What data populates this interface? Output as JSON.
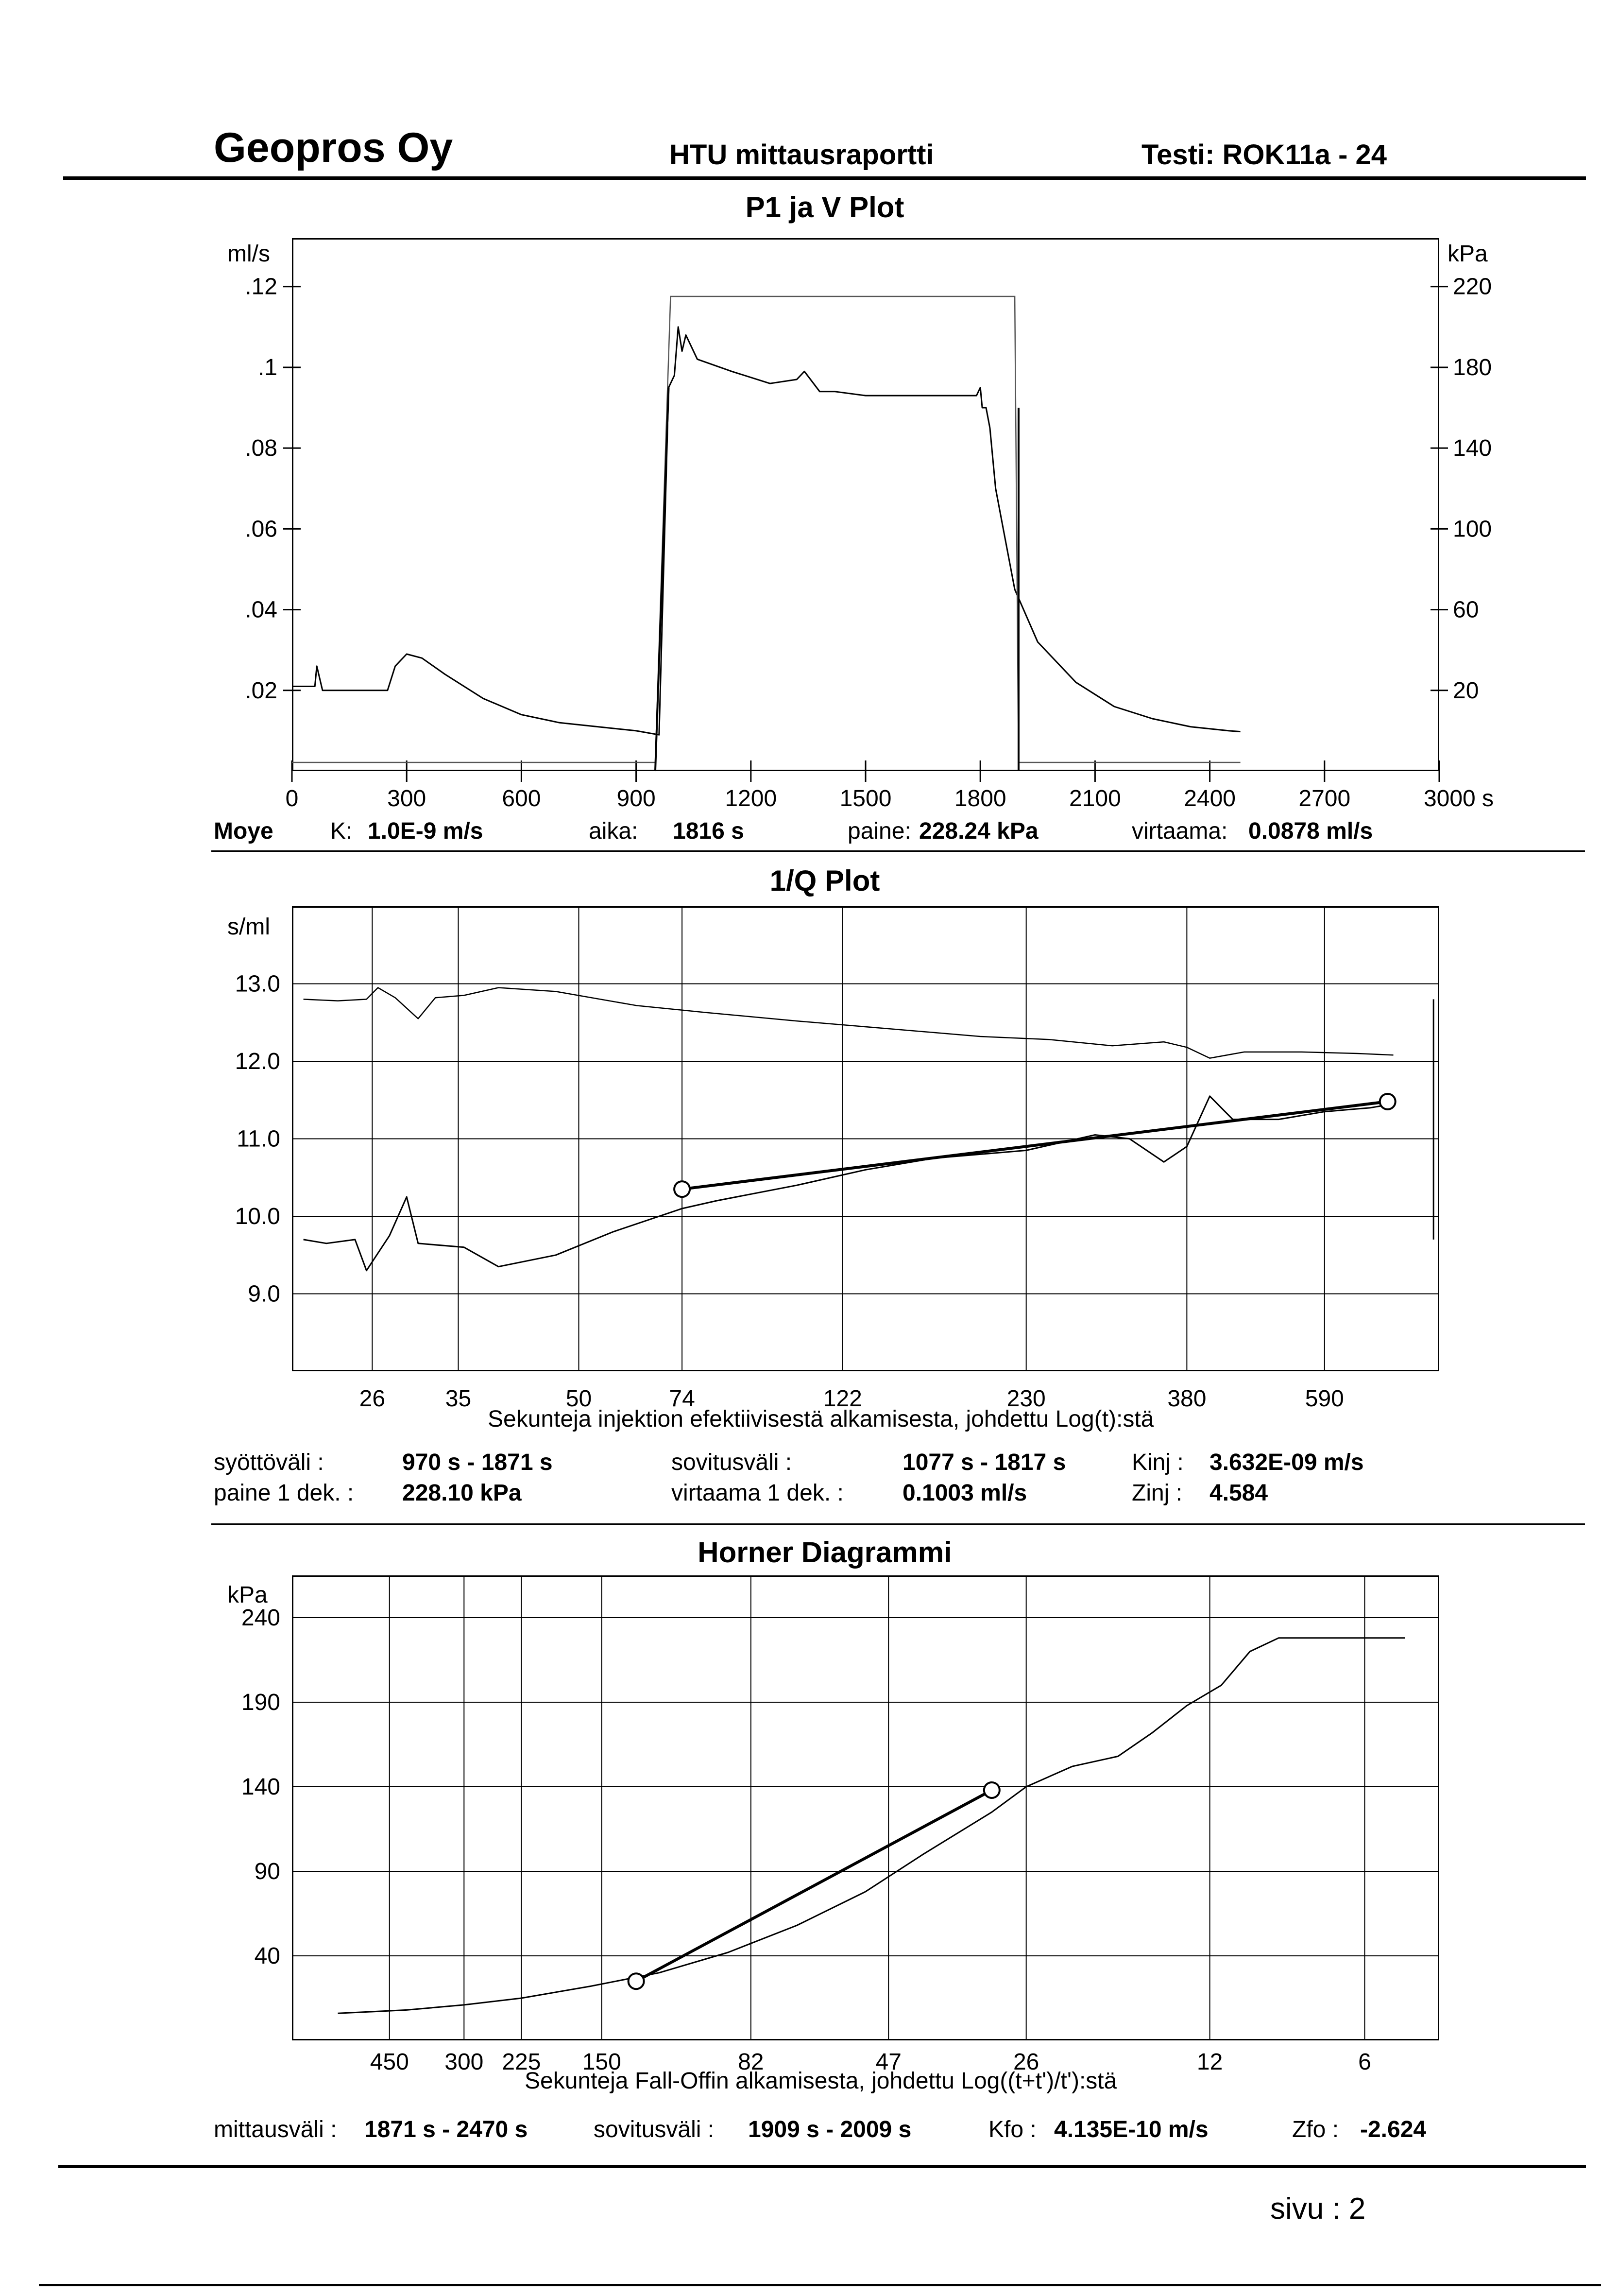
{
  "header": {
    "company": "Geopros Oy",
    "report": "HTU mittausraportti",
    "test": "Testi: ROK11a - 24"
  },
  "page_label": "sivu :  2",
  "plot1_info": {
    "name": "Moye",
    "k_label": "K:",
    "k_value": "1.0E-9 m/s",
    "aika_label": "aika:",
    "aika_value": "1816 s",
    "paine_label": "paine:",
    "paine_value": "228.24 kPa",
    "virtaama_label": "virtaama:",
    "virtaama_value": "0.0878 ml/s"
  },
  "plot2_info": {
    "syotto_label": "syöttöväli :",
    "syotto_value": "970 s -  1871 s",
    "sovitus_label": "sovitusväli :",
    "sovitus_value": "1077 s -   1817 s",
    "kinj_label": "Kinj :",
    "kinj_value": "3.632E-09 m/s",
    "paine1_label": "paine 1 dek. :",
    "paine1_value": "228.10 kPa",
    "virtaama1_label": "virtaama 1 dek. :",
    "virtaama1_value": "0.1003 ml/s",
    "zinj_label": "Zinj :",
    "zinj_value": "4.584"
  },
  "plot3_info": {
    "mittaus_label": "mittausväli :",
    "mittaus_value": "1871 s -  2470 s",
    "sovitus_label": "sovitusväli :",
    "sovitus_value": "1909 s -  2009 s",
    "kfo_label": "Kfo :",
    "kfo_value": "4.135E-10 m/s",
    "zfo_label": "Zfo :",
    "zfo_value": "-2.624"
  },
  "chart_data": [
    {
      "type": "line",
      "title": "P1 ja V Plot",
      "ylabel_left": "ml/s",
      "ylabel_right": "kPa",
      "xlim": [
        0,
        3000
      ],
      "x_ticks": [
        {
          "v": 0,
          "label": "0"
        },
        {
          "v": 300,
          "label": "300"
        },
        {
          "v": 600,
          "label": "600"
        },
        {
          "v": 900,
          "label": "900"
        },
        {
          "v": 1200,
          "label": "1200"
        },
        {
          "v": 1500,
          "label": "1500"
        },
        {
          "v": 1800,
          "label": "1800"
        },
        {
          "v": 2100,
          "label": "2100"
        },
        {
          "v": 2400,
          "label": "2400"
        },
        {
          "v": 2700,
          "label": "2700"
        },
        {
          "v": 3000,
          "label": "3000 s"
        }
      ],
      "y_left_ticks": [
        ".12",
        ".1",
        ".08",
        ".06",
        ".04",
        ".02"
      ],
      "y_right_ticks": [
        "220",
        "180",
        "140",
        "100",
        "60",
        "20"
      ],
      "ylim_left": [
        0,
        0.132
      ],
      "series": [
        {
          "axis": "left",
          "points": [
            [
              0,
              0.021
            ],
            [
              60,
              0.021
            ],
            [
              65,
              0.026
            ],
            [
              80,
              0.02
            ],
            [
              250,
              0.02
            ],
            [
              270,
              0.026
            ],
            [
              300,
              0.029
            ],
            [
              340,
              0.028
            ],
            [
              400,
              0.024
            ],
            [
              500,
              0.018
            ],
            [
              600,
              0.014
            ],
            [
              700,
              0.012
            ],
            [
              800,
              0.011
            ],
            [
              900,
              0.01
            ],
            [
              960,
              0.009
            ],
            [
              985,
              0.095
            ],
            [
              1000,
              0.098
            ],
            [
              1010,
              0.11
            ],
            [
              1020,
              0.104
            ],
            [
              1030,
              0.108
            ],
            [
              1060,
              0.102
            ],
            [
              1150,
              0.099
            ],
            [
              1250,
              0.096
            ],
            [
              1320,
              0.097
            ],
            [
              1340,
              0.099
            ],
            [
              1380,
              0.094
            ],
            [
              1420,
              0.094
            ],
            [
              1500,
              0.093
            ],
            [
              1600,
              0.093
            ],
            [
              1700,
              0.093
            ],
            [
              1790,
              0.093
            ],
            [
              1800,
              0.095
            ],
            [
              1805,
              0.09
            ],
            [
              1815,
              0.09
            ],
            [
              1825,
              0.085
            ],
            [
              1840,
              0.07
            ],
            [
              1860,
              0.06
            ],
            [
              1890,
              0.045
            ],
            [
              1950,
              0.032
            ],
            [
              2050,
              0.022
            ],
            [
              2150,
              0.016
            ],
            [
              2250,
              0.013
            ],
            [
              2350,
              0.011
            ],
            [
              2450,
              0.01
            ],
            [
              2480,
              0.0098
            ]
          ]
        },
        {
          "axis": "right_box",
          "points": [
            [
              0,
              0
            ],
            [
              950,
              0
            ],
            [
              990,
              1
            ],
            [
              1890,
              1
            ],
            [
              1900,
              0
            ],
            [
              2480,
              0
            ]
          ],
          "level_right_kPa": 228.24
        }
      ]
    },
    {
      "type": "line",
      "title": "1/Q Plot",
      "ylabel": "s/ml",
      "xlabel": "Sekunteja injektion efektiivisestä alkamisesta, johdettu Log(t):stä",
      "x_ticks": [
        "26",
        "35",
        "50",
        "74",
        "122",
        "230",
        "380",
        "590"
      ],
      "y_ticks": [
        "13.0",
        "12.0",
        "11.0",
        "10.0",
        "9.0"
      ],
      "ylim": [
        8.0,
        14.0
      ],
      "xlim": [
        0,
        1000
      ],
      "series": [
        {
          "name": "upper",
          "points": [
            [
              10,
              12.8
            ],
            [
              40,
              12.78
            ],
            [
              65,
              12.8
            ],
            [
              75,
              12.95
            ],
            [
              90,
              12.82
            ],
            [
              110,
              12.55
            ],
            [
              125,
              12.82
            ],
            [
              150,
              12.85
            ],
            [
              180,
              12.95
            ],
            [
              230,
              12.9
            ],
            [
              300,
              12.72
            ],
            [
              360,
              12.63
            ],
            [
              440,
              12.52
            ],
            [
              520,
              12.42
            ],
            [
              600,
              12.32
            ],
            [
              660,
              12.28
            ],
            [
              715,
              12.2
            ],
            [
              760,
              12.25
            ],
            [
              780,
              12.18
            ],
            [
              800,
              12.04
            ],
            [
              830,
              12.12
            ],
            [
              880,
              12.12
            ],
            [
              930,
              12.1
            ],
            [
              960,
              12.08
            ]
          ]
        },
        {
          "name": "lower",
          "points": [
            [
              10,
              9.7
            ],
            [
              30,
              9.65
            ],
            [
              55,
              9.7
            ],
            [
              65,
              9.3
            ],
            [
              85,
              9.75
            ],
            [
              100,
              10.25
            ],
            [
              110,
              9.65
            ],
            [
              150,
              9.6
            ],
            [
              180,
              9.35
            ],
            [
              230,
              9.5
            ],
            [
              280,
              9.8
            ],
            [
              340,
              10.1
            ],
            [
              370,
              10.2
            ],
            [
              440,
              10.4
            ],
            [
              500,
              10.6
            ],
            [
              560,
              10.75
            ],
            [
              640,
              10.85
            ],
            [
              700,
              11.05
            ],
            [
              730,
              11.0
            ],
            [
              760,
              10.7
            ],
            [
              780,
              10.9
            ],
            [
              800,
              11.55
            ],
            [
              820,
              11.25
            ],
            [
              860,
              11.25
            ],
            [
              900,
              11.35
            ],
            [
              940,
              11.4
            ],
            [
              960,
              11.45
            ]
          ]
        },
        {
          "name": "fit",
          "points": [
            [
              340,
              10.35
            ],
            [
              955,
              11.48
            ]
          ]
        }
      ]
    },
    {
      "type": "line",
      "title": "Horner Diagrammi",
      "ylabel": "kPa",
      "xlabel": "Sekunteja Fall-Offin alkamisesta, johdettu Log((t+t')/t'):stä",
      "x_ticks": [
        "450",
        "300",
        "225",
        "150",
        "82",
        "47",
        "26",
        "12",
        "6"
      ],
      "y_ticks": [
        "240",
        "190",
        "140",
        "90",
        "40"
      ],
      "ylim": [
        -10,
        265
      ],
      "xlim": [
        0,
        1000
      ],
      "series": [
        {
          "name": "data",
          "points": [
            [
              40,
              6
            ],
            [
              100,
              8
            ],
            [
              150,
              11
            ],
            [
              200,
              15
            ],
            [
              260,
              22
            ],
            [
              320,
              30
            ],
            [
              380,
              42
            ],
            [
              440,
              58
            ],
            [
              500,
              78
            ],
            [
              550,
              100
            ],
            [
              610,
              125
            ],
            [
              640,
              140
            ],
            [
              680,
              152
            ],
            [
              720,
              158
            ],
            [
              750,
              172
            ],
            [
              780,
              188
            ],
            [
              810,
              200
            ],
            [
              835,
              220
            ],
            [
              860,
              228
            ],
            [
              900,
              228
            ],
            [
              970,
              228
            ]
          ]
        },
        {
          "name": "fit",
          "points": [
            [
              300,
              25
            ],
            [
              610,
              138
            ]
          ]
        }
      ]
    }
  ]
}
